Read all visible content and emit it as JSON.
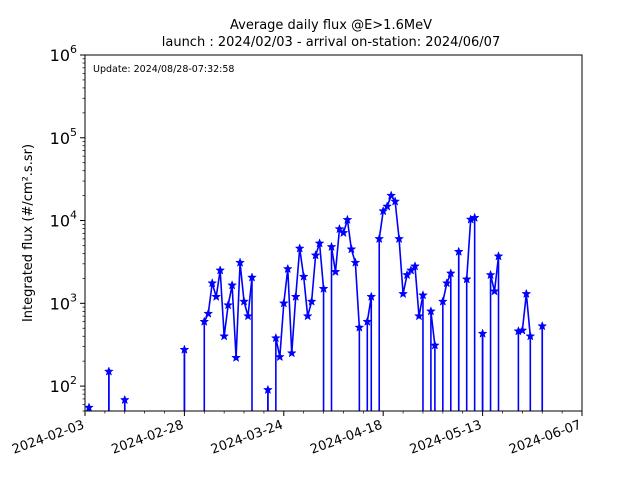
{
  "chart_data": {
    "type": "line",
    "title_line1": "Average daily flux @E>1.6MeV",
    "title_line2": "launch : 2024/02/03 - arrival on-station: 2024/06/07",
    "annotation": "Update: 2024/08/28-07:32:58",
    "xlabel": "",
    "ylabel": "Integrated flux (#/cm².s.sr)",
    "yscale": "log",
    "ylim": [
      50,
      1000000
    ],
    "xlim": [
      "2024-02-03",
      "2024-06-07"
    ],
    "xticks": [
      "2024-02-03",
      "2024-02-28",
      "2024-03-24",
      "2024-04-18",
      "2024-05-13",
      "2024-06-07"
    ],
    "yticks": [
      {
        "base": "10",
        "exp": "2",
        "value": 100
      },
      {
        "base": "10",
        "exp": "3",
        "value": 1000
      },
      {
        "base": "10",
        "exp": "4",
        "value": 10000
      },
      {
        "base": "10",
        "exp": "5",
        "value": 100000
      },
      {
        "base": "10",
        "exp": "6",
        "value": 1000000
      }
    ],
    "color": "#0000ff",
    "x": [
      "2024-02-04",
      "2024-02-06",
      "2024-02-08",
      "2024-02-09",
      "2024-02-12",
      "2024-02-13",
      "2024-02-16",
      "2024-02-20",
      "2024-02-24",
      "2024-02-27",
      "2024-02-28",
      "2024-03-03",
      "2024-03-04",
      "2024-03-05",
      "2024-03-06",
      "2024-03-07",
      "2024-03-08",
      "2024-03-09",
      "2024-03-10",
      "2024-03-11",
      "2024-03-12",
      "2024-03-13",
      "2024-03-14",
      "2024-03-15",
      "2024-03-16",
      "2024-03-17",
      "2024-03-19",
      "2024-03-20",
      "2024-03-21",
      "2024-03-22",
      "2024-03-23",
      "2024-03-24",
      "2024-03-25",
      "2024-03-26",
      "2024-03-27",
      "2024-03-28",
      "2024-03-29",
      "2024-03-30",
      "2024-03-31",
      "2024-04-01",
      "2024-04-02",
      "2024-04-03",
      "2024-04-04",
      "2024-04-05",
      "2024-04-06",
      "2024-04-07",
      "2024-04-08",
      "2024-04-09",
      "2024-04-10",
      "2024-04-11",
      "2024-04-12",
      "2024-04-13",
      "2024-04-14",
      "2024-04-15",
      "2024-04-16",
      "2024-04-17",
      "2024-04-18",
      "2024-04-19",
      "2024-04-20",
      "2024-04-21",
      "2024-04-22",
      "2024-04-23",
      "2024-04-24",
      "2024-04-25",
      "2024-04-26",
      "2024-04-27",
      "2024-04-28",
      "2024-04-29",
      "2024-04-30",
      "2024-05-01",
      "2024-05-02",
      "2024-05-03",
      "2024-05-04",
      "2024-05-05",
      "2024-05-06",
      "2024-05-07",
      "2024-05-08",
      "2024-05-09",
      "2024-05-10",
      "2024-05-11",
      "2024-05-12",
      "2024-05-13",
      "2024-05-14",
      "2024-05-15",
      "2024-05-16",
      "2024-05-17",
      "2024-05-18",
      "2024-05-19",
      "2024-05-20",
      "2024-05-21",
      "2024-05-22",
      "2024-05-23",
      "2024-05-24",
      "2024-05-25",
      "2024-05-26",
      "2024-05-27",
      "2024-05-28",
      "2024-05-29",
      "2024-05-30",
      "2024-05-31",
      "2024-06-01",
      "2024-06-02",
      "2024-06-03"
    ],
    "values": [
      55,
      null,
      null,
      150,
      null,
      68,
      null,
      null,
      null,
      null,
      275,
      null,
      600,
      750,
      1750,
      1200,
      2500,
      400,
      950,
      1650,
      220,
      3100,
      1050,
      700,
      2050,
      null,
      null,
      90,
      null,
      380,
      225,
      1000,
      2600,
      250,
      1200,
      4600,
      2100,
      700,
      1050,
      3800,
      5300,
      1500,
      null,
      4800,
      2400,
      7900,
      7100,
      10200,
      4500,
      3100,
      510,
      null,
      600,
      1200,
      null,
      6000,
      13000,
      14800,
      20000,
      17000,
      6000,
      1300,
      2200,
      2500,
      2800,
      700,
      1250,
      null,
      800,
      310,
      null,
      1050,
      1750,
      2300,
      null,
      4200,
      null,
      1950,
      10300,
      10800,
      null,
      430,
      null,
      2200,
      1400,
      3700,
      null,
      null,
      null,
      null,
      460,
      470,
      1300,
      400,
      null,
      null,
      530,
      null,
      null,
      null,
      null,
      null,
      null
    ]
  }
}
